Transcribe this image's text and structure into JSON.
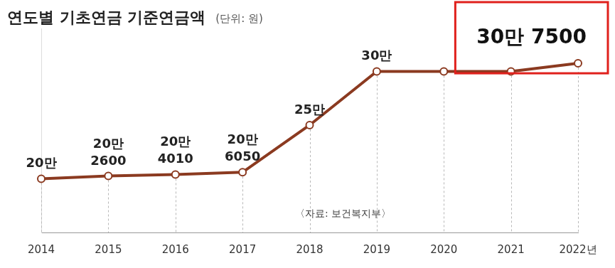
{
  "chart_data": {
    "type": "line",
    "title": "연도별 기초연금 기준연금액",
    "subtitle": "(단위: 원)",
    "annotation": "〈자료: 보건복지부〉",
    "categories": [
      "2014",
      "2015",
      "2016",
      "2017",
      "2018",
      "2019",
      "2020",
      "2021",
      "2022년"
    ],
    "values": [
      200000,
      202600,
      204010,
      206050,
      250000,
      300000,
      300000,
      300000,
      307500
    ],
    "value_labels": [
      "20만",
      "20만 2600",
      "20만 4010",
      "20만 6050",
      "25만",
      "30만",
      null,
      null,
      "30만 7500"
    ],
    "data_labels": true,
    "color": "#8b3a20",
    "marker": "circle",
    "ylim": [
      150000,
      340000
    ],
    "yticks": [],
    "tick_labels": "x",
    "grid": true
  }
}
